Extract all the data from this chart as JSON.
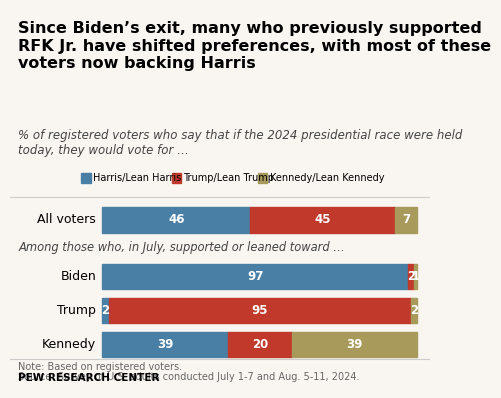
{
  "title": "Since Biden’s exit, many who previously supported\nRFK Jr. have shifted preferences, with most of these\nvoters now backing Harris",
  "subtitle": "% of registered voters who say that if the 2024 presidential race were held\ntoday, they would vote for …",
  "section_label": "Among those who, in July, supported or leaned toward …",
  "note": "Note: Based on registered voters.",
  "source": "Source: Survey of U.S. adults conducted July 1-7 and Aug. 5-11, 2024.",
  "credit": "PEW RESEARCH CENTER",
  "categories": [
    "All voters",
    "Biden",
    "Trump",
    "Kennedy"
  ],
  "harris_values": [
    46,
    97,
    2,
    39
  ],
  "trump_values": [
    45,
    2,
    95,
    20
  ],
  "kennedy_values": [
    7,
    1,
    2,
    39
  ],
  "harris_color": "#4a7fa5",
  "trump_color": "#c0392b",
  "kennedy_color": "#a89a5a",
  "background_color": "#f9f6f1",
  "legend_labels": [
    "Harris/Lean Harris",
    "Trump/Lean Trump",
    "Kennedy/Lean Kennedy"
  ],
  "title_fontsize": 11.5,
  "subtitle_fontsize": 8.5,
  "label_fontsize": 9,
  "bar_label_fontsize": 8.5
}
